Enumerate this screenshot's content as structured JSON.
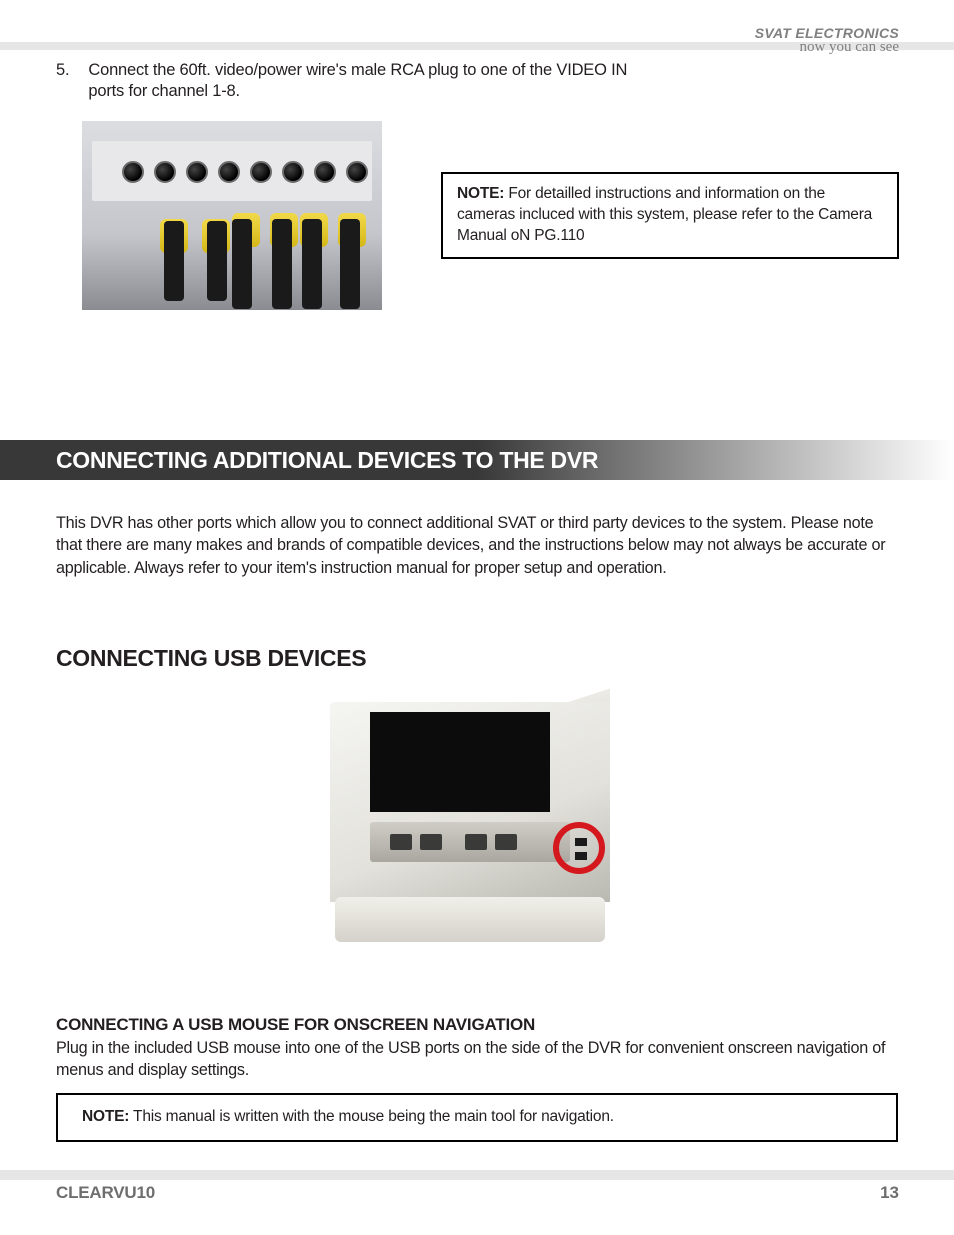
{
  "brand": {
    "name": "SVAT ELECTRONICS",
    "tagline": "now you can see"
  },
  "step": {
    "number": "5.",
    "text": "Connect the 60ft. video/power wire's male RCA plug to one of the VIDEO IN ports for channel 1-8."
  },
  "note1": {
    "label": "NOTE:",
    "text": "  For detailled instructions and information on the cameras incluced with this system, please refer to the Camera Manual oN PG.110"
  },
  "section_heading": "CONNECTING ADDITIONAL DEVICES TO THE DVR",
  "intro_text": "This DVR has other ports which allow you to connect additional SVAT or third party devices to the system.  Please note that there are many makes and brands of compatible devices, and the instructions below may not always be accurate or applicable.  Always refer to your item's instruction manual for proper setup and operation.",
  "sub_heading": "CONNECTING USB DEVICES",
  "sub_sub_heading": "CONNECTING A USB MOUSE FOR ONSCREEN NAVIGATION",
  "body2": "Plug in the included USB mouse into one of the USB ports on the side of the DVR for convenient onscreen navigation of menus and display settings.",
  "note2": {
    "label": "NOTE:",
    "text": "  This manual is written with the mouse being the main tool for navigation."
  },
  "footer": {
    "model": "CLEARVU10",
    "page": "13"
  },
  "colors": {
    "stripe": "#e6e6e6",
    "text": "#231f20",
    "brand_gray": "#808080",
    "section_dark": "#383838",
    "highlight_red": "#d4181e",
    "footer_text": "#6e6e6e"
  }
}
